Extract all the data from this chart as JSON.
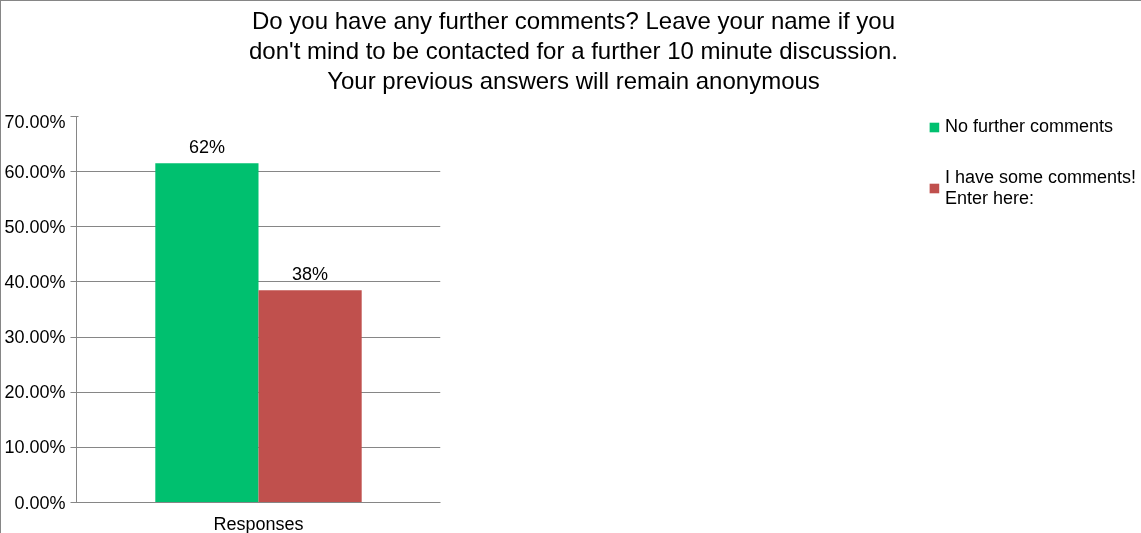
{
  "chart_data": {
    "type": "bar",
    "title": "Do you have any further comments? Leave your name if you\ndon't mind to be contacted for a further 10 minute discussion.\nYour previous answers will remain anonymous",
    "categories": [
      "Responses"
    ],
    "series": [
      {
        "name": "No further comments",
        "color": "#00c06f",
        "values": [
          61.5
        ],
        "value_labels": [
          "62%"
        ]
      },
      {
        "name": "I have some comments!\nEnter here:",
        "color": "#c0504d",
        "values": [
          38.5
        ],
        "value_labels": [
          "38%"
        ]
      }
    ],
    "ylim": [
      0,
      70
    ],
    "yticks": [
      {
        "value": 0,
        "label": "0.00%"
      },
      {
        "value": 10,
        "label": "10.00%"
      },
      {
        "value": 20,
        "label": "20.00%"
      },
      {
        "value": 30,
        "label": "30.00%"
      },
      {
        "value": 40,
        "label": "40.00%"
      },
      {
        "value": 50,
        "label": "50.00%"
      },
      {
        "value": 60,
        "label": "60.00%"
      },
      {
        "value": 70,
        "label": "70.00%"
      }
    ],
    "grid": "y",
    "legend": "right"
  }
}
